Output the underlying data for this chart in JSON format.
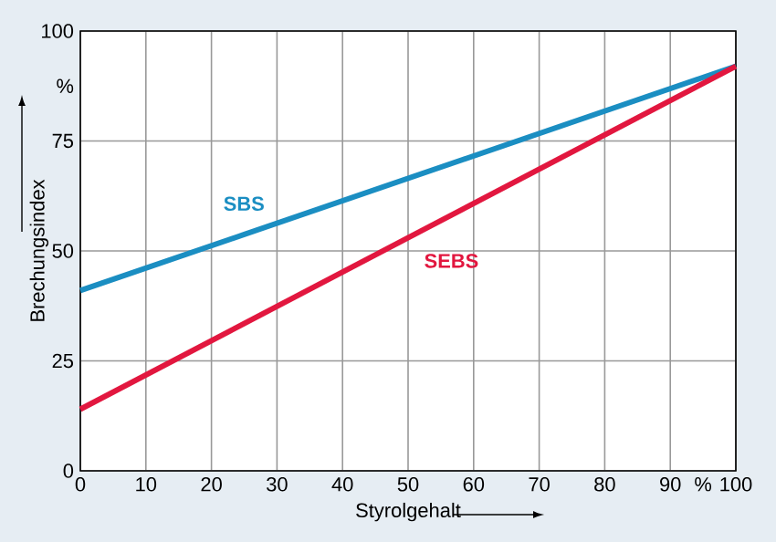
{
  "chart_data": {
    "type": "line",
    "xlabel": "Styrolgehalt",
    "ylabel": "Brechungsindex",
    "x": [
      0,
      100
    ],
    "series": [
      {
        "name": "SBS",
        "color": "#1b8ec2",
        "values": [
          41,
          92
        ]
      },
      {
        "name": "SEBS",
        "color": "#e2173f",
        "values": [
          14,
          92
        ]
      }
    ],
    "xlim": [
      0,
      100
    ],
    "ylim": [
      0,
      100
    ],
    "xticks": [
      0,
      10,
      20,
      30,
      40,
      50,
      60,
      70,
      80,
      90,
      {
        "value": 95,
        "label": "%"
      },
      100
    ],
    "yticks": [
      0,
      25,
      50,
      75,
      {
        "value": 87.5,
        "label": "%"
      },
      100
    ],
    "grid": true,
    "marker": "none",
    "line_style": "solid"
  }
}
